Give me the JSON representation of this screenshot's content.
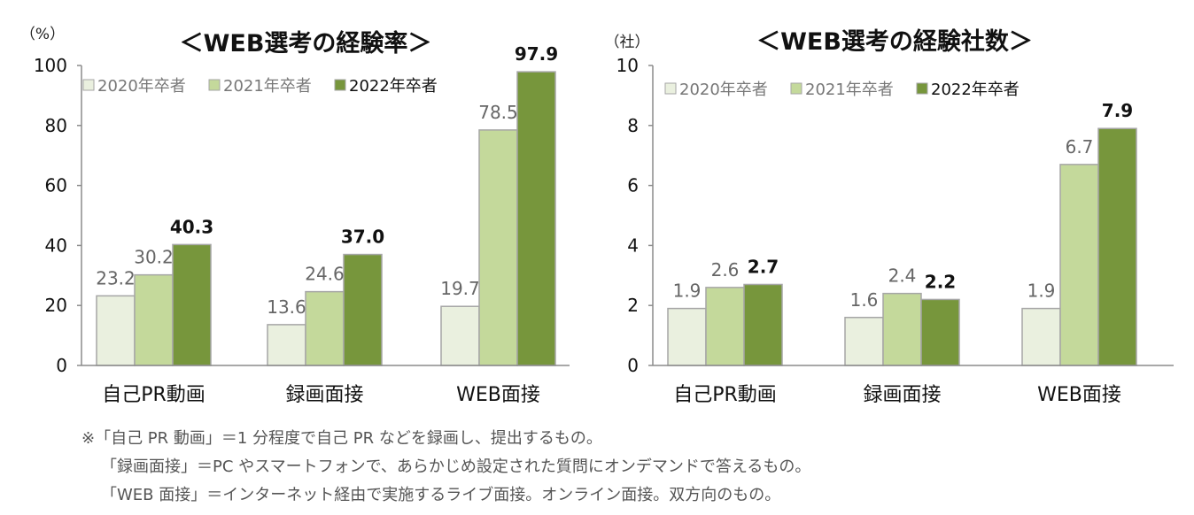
{
  "chart_data": [
    {
      "type": "bar",
      "title": "＜WEB選考の経験率＞",
      "unit_label": "（%）",
      "ylim": [
        0,
        100
      ],
      "yticks": [
        "0",
        "20",
        "40",
        "60",
        "80",
        "100"
      ],
      "categories": [
        "自己PR動画",
        "録画面接",
        "WEB面接"
      ],
      "series": [
        {
          "name": "2020年卒者",
          "values": [
            23.2,
            13.6,
            19.7
          ],
          "labels": [
            "23.2",
            "13.6",
            "19.7"
          ],
          "color": "#eaf0df"
        },
        {
          "name": "2021年卒者",
          "values": [
            30.2,
            24.6,
            78.5
          ],
          "labels": [
            "30.2",
            "24.6",
            "78.5"
          ],
          "color": "#c4d99b"
        },
        {
          "name": "2022年卒者",
          "values": [
            40.3,
            37.0,
            97.9
          ],
          "labels": [
            "40.3",
            "37.0",
            "97.9"
          ],
          "color": "#77963c"
        }
      ],
      "legend_position": "top-left",
      "grid": false
    },
    {
      "type": "bar",
      "title": "＜WEB選考の経験社数＞",
      "unit_label": "（社）",
      "ylim": [
        0,
        10
      ],
      "yticks": [
        "0",
        "2",
        "4",
        "6",
        "8",
        "10"
      ],
      "categories": [
        "自己PR動画",
        "録画面接",
        "WEB面接"
      ],
      "series": [
        {
          "name": "2020年卒者",
          "values": [
            1.9,
            1.6,
            1.9
          ],
          "labels": [
            "1.9",
            "1.6",
            "1.9"
          ],
          "color": "#eaf0df"
        },
        {
          "name": "2021年卒者",
          "values": [
            2.6,
            2.4,
            6.7
          ],
          "labels": [
            "2.6",
            "2.4",
            "6.7"
          ],
          "color": "#c4d99b"
        },
        {
          "name": "2022年卒者",
          "values": [
            2.7,
            2.2,
            7.9
          ],
          "labels": [
            "2.7",
            "2.2",
            "7.9"
          ],
          "color": "#77963c"
        }
      ],
      "legend_position": "top-left",
      "grid": false
    }
  ],
  "notes": {
    "line1": "※「自己 PR 動画」＝1 分程度で自己 PR などを録画し、提出するもの。",
    "line2": "「録画面接」＝PC やスマートフォンで、あらかじめ設定された質問にオンデマンドで答えるもの。",
    "line3": "「WEB 面接」＝インターネット経由で実施するライブ面接。オンライン面接。双方向のもの。"
  }
}
